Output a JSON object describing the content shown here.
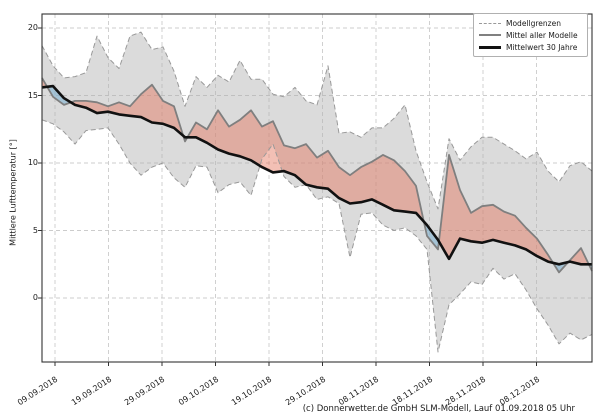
{
  "figure": {
    "ylabel": "Mittlere Lufttemperatur [°]",
    "copyright": "(c) Donnerwetter.de GmbH SLM-Modell, Lauf 01.09.2018 05 Uhr"
  },
  "legend": {
    "items": [
      {
        "label": "Modellgrenzen",
        "style": "dashed-gray"
      },
      {
        "label": "Mittel aller Modelle",
        "style": "solid-gray"
      },
      {
        "label": "Mittelwert 30 Jahre",
        "style": "solid-black-thick"
      }
    ]
  },
  "chart_data": {
    "type": "line",
    "title": "",
    "xlabel": "",
    "ylabel": "Mittlere Lufttemperatur [°]",
    "x_tick_labels": [
      "09.09.2018",
      "19.09.2018",
      "29.09.2018",
      "09.10.2018",
      "19.10.2018",
      "29.10.2018",
      "08.11.2018",
      "18.11.2018",
      "28.11.2018",
      "08.12.2018"
    ],
    "x_tick_interval_days": 10,
    "y_ticks": [
      0,
      5,
      10,
      15,
      20
    ],
    "ylim": [
      -4.7,
      21.0
    ],
    "grid": true,
    "legend_position": "upper right",
    "sampling": {
      "day0_label": "09.09.2018",
      "first_sample_day": -2.4,
      "step_days": 2.056,
      "n_samples": 51
    },
    "series": [
      {
        "name": "Modellgrenze obere Grenze",
        "legend": "Modellgrenzen",
        "style": "dashed",
        "color": "#999999",
        "width": 1,
        "values": [
          18.7,
          17.2,
          16.3,
          16.4,
          16.7,
          19.4,
          17.8,
          17.0,
          19.4,
          19.7,
          18.4,
          18.6,
          16.8,
          14.2,
          16.4,
          15.6,
          16.5,
          16.0,
          17.6,
          16.2,
          16.2,
          15.1,
          14.9,
          15.6,
          14.6,
          14.3,
          17.2,
          12.2,
          12.3,
          11.9,
          12.6,
          12.6,
          13.3,
          14.3,
          10.9,
          8.6,
          6.6,
          11.8,
          10.2,
          11.2,
          11.9,
          11.9,
          11.4,
          10.9,
          10.3,
          10.8,
          9.4,
          8.6,
          9.8,
          10.1,
          9.4
        ]
      },
      {
        "name": "Modellgrenze untere Grenze",
        "legend": "Modellgrenzen",
        "style": "dashed",
        "color": "#999999",
        "width": 1,
        "values": [
          13.2,
          12.9,
          12.3,
          11.4,
          12.4,
          12.5,
          12.6,
          11.4,
          10.0,
          9.1,
          9.7,
          10.0,
          8.9,
          8.2,
          9.8,
          9.7,
          7.8,
          8.4,
          8.6,
          7.6,
          10.3,
          11.4,
          9.0,
          8.2,
          8.4,
          7.3,
          7.5,
          7.0,
          3.0,
          6.2,
          6.3,
          5.4,
          5.0,
          5.2,
          4.6,
          3.6,
          -4.0,
          -0.5,
          0.3,
          1.2,
          1.0,
          2.2,
          1.4,
          1.8,
          0.6,
          -0.8,
          -2.0,
          -3.4,
          -2.6,
          -3.1,
          -2.7
        ]
      },
      {
        "name": "Mittel aller Modelle",
        "legend": "Mittel aller Modelle",
        "style": "solid",
        "color": "#7f7f7f",
        "width": 1.8,
        "values": [
          16.3,
          14.9,
          14.3,
          14.6,
          14.6,
          14.5,
          14.2,
          14.5,
          14.2,
          15.1,
          15.8,
          14.6,
          14.2,
          11.6,
          13.0,
          12.5,
          13.9,
          12.7,
          13.2,
          13.9,
          12.7,
          13.1,
          11.3,
          11.1,
          11.4,
          10.4,
          10.9,
          9.7,
          9.1,
          9.7,
          10.1,
          10.6,
          10.2,
          9.4,
          8.3,
          4.6,
          3.6,
          10.6,
          8.0,
          6.3,
          6.8,
          6.9,
          6.4,
          6.1,
          5.2,
          4.4,
          3.2,
          1.9,
          2.8,
          3.7,
          2.0
        ]
      },
      {
        "name": "Mittelwert 30 Jahre",
        "legend": "Mittelwert 30 Jahre",
        "style": "solid",
        "color": "#111111",
        "width": 2.6,
        "values": [
          15.6,
          15.7,
          14.8,
          14.3,
          14.1,
          13.7,
          13.8,
          13.6,
          13.5,
          13.4,
          13.0,
          12.9,
          12.6,
          11.9,
          11.9,
          11.5,
          11.0,
          10.7,
          10.5,
          10.2,
          9.7,
          9.3,
          9.4,
          9.1,
          8.4,
          8.2,
          8.1,
          7.4,
          7.0,
          7.1,
          7.3,
          6.9,
          6.5,
          6.4,
          6.3,
          5.4,
          4.3,
          2.9,
          4.4,
          4.2,
          4.1,
          4.3,
          4.1,
          3.9,
          3.6,
          3.1,
          2.7,
          2.5,
          2.7,
          2.5,
          2.5
        ]
      }
    ],
    "fills": {
      "band_color": "rgba(175,175,175,0.45)",
      "above_mean30_color": "rgba(228,115,90,0.45)",
      "below_mean30_color": "rgba(120,175,208,0.55)",
      "meaning": {
        "band": "Spanne zwischen den Modellgrenzen",
        "above": "Mittel aller Modelle liegt ueber dem 30-Jahre-Mittel",
        "below": "Mittel aller Modelle liegt unter dem 30-Jahre-Mittel"
      }
    }
  }
}
